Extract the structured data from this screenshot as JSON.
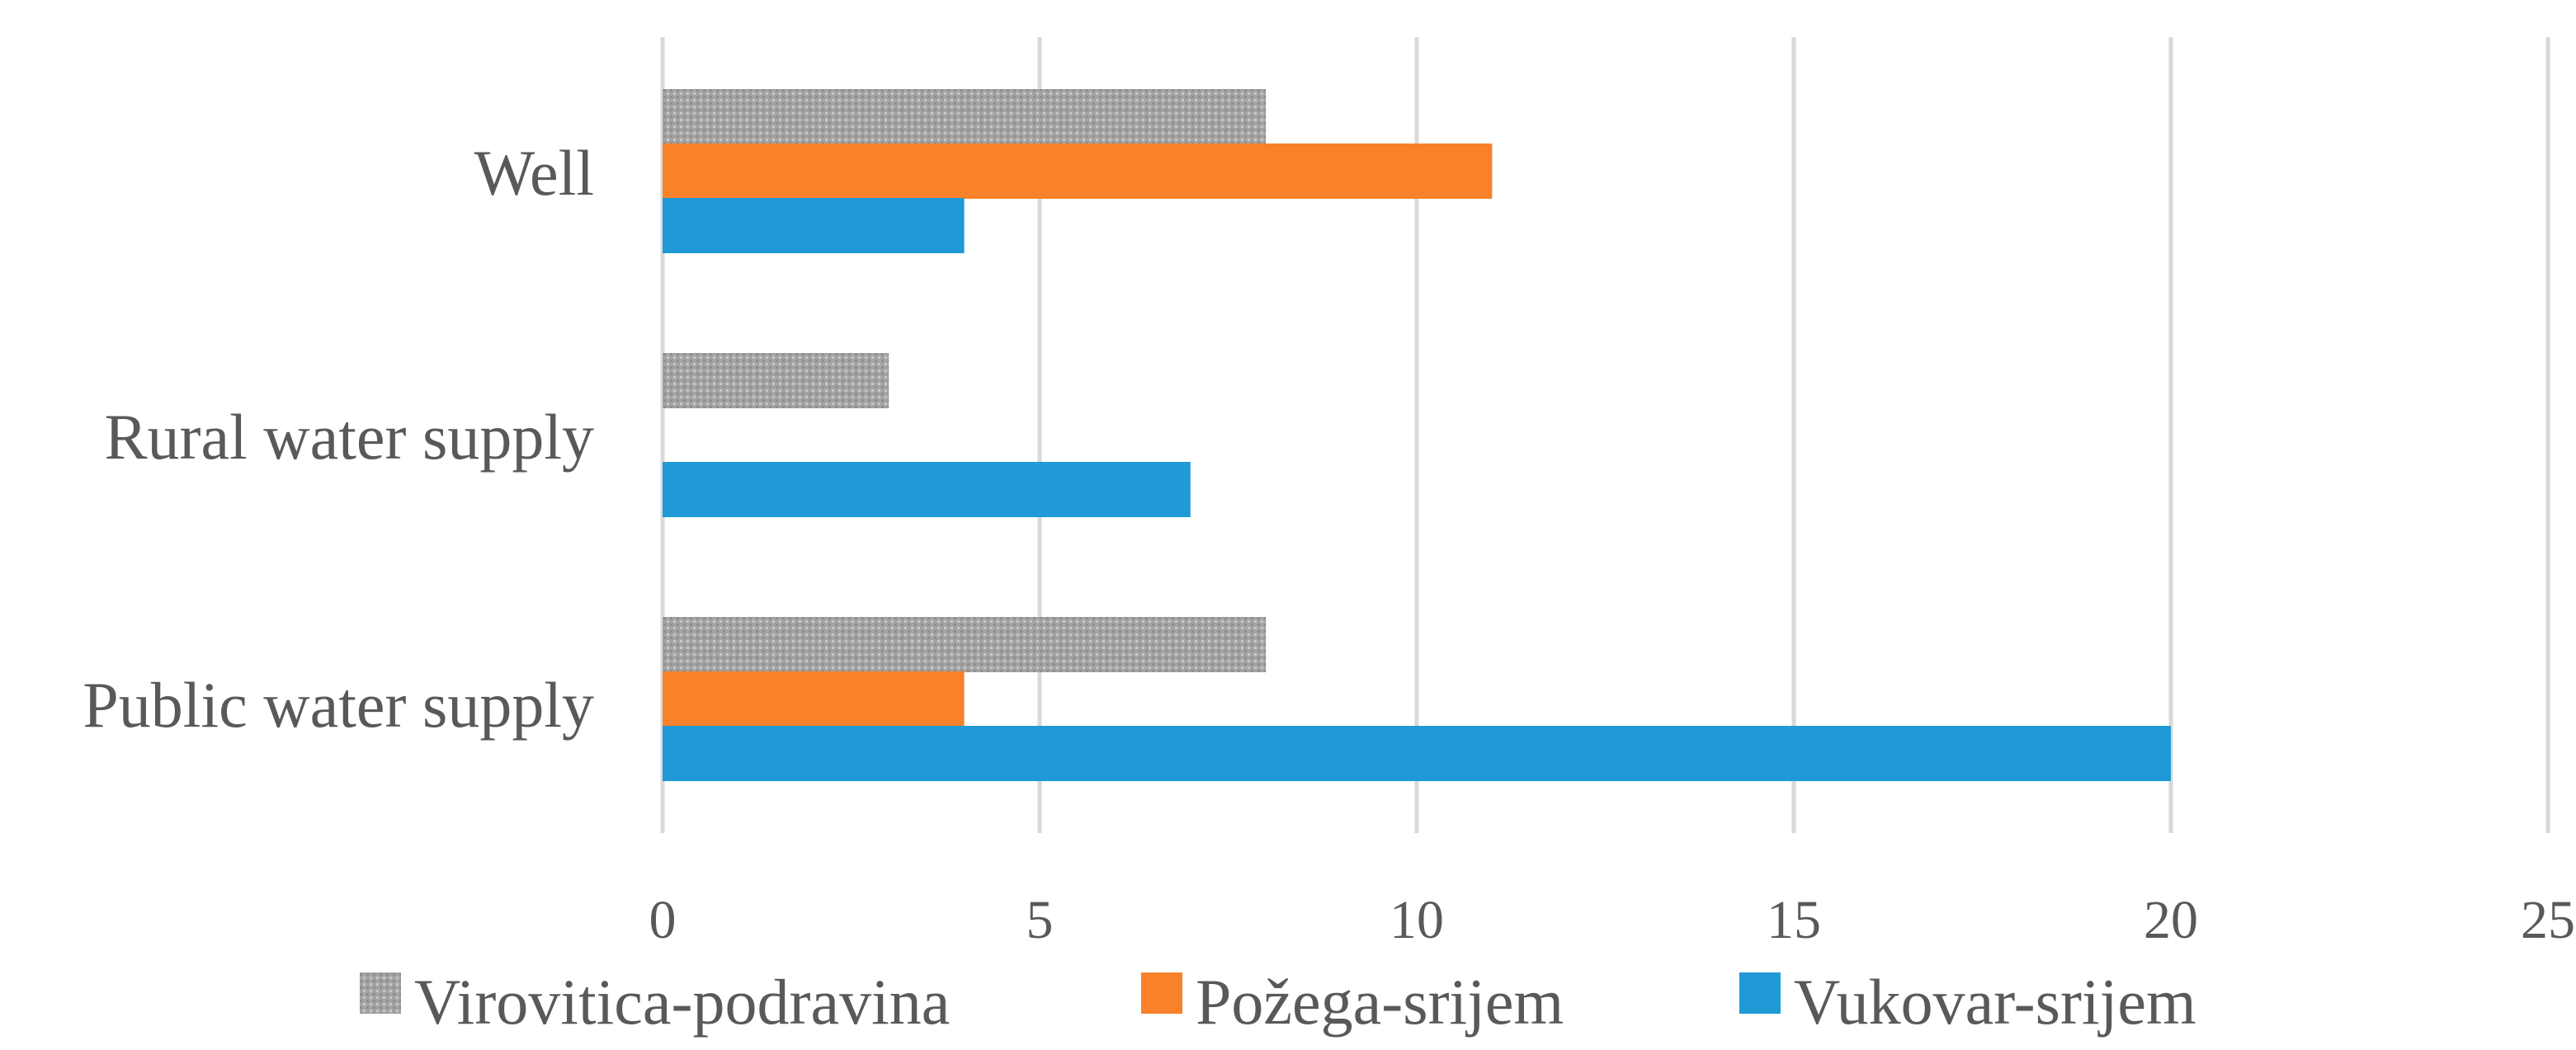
{
  "chart_data": {
    "type": "bar",
    "orientation": "horizontal",
    "categories": [
      "Well",
      "Rural water supply",
      "Public water supply"
    ],
    "series": [
      {
        "name": "Virovitica-podravina",
        "values": [
          8,
          3,
          8
        ],
        "color": "#a6a6a6",
        "pattern": "dotted-gray"
      },
      {
        "name": "Požega-srijem",
        "values": [
          11,
          0,
          4
        ],
        "color": "#f8812a"
      },
      {
        "name": "Vukovar-srijem",
        "values": [
          4,
          7,
          20
        ],
        "color": "#1f9ad6"
      }
    ],
    "x_ticks": [
      "0",
      "5",
      "10",
      "15",
      "20",
      "25"
    ],
    "xlim": [
      0,
      25
    ],
    "grid": true,
    "legend_position": "bottom",
    "title": "",
    "xlabel": "",
    "ylabel": ""
  }
}
